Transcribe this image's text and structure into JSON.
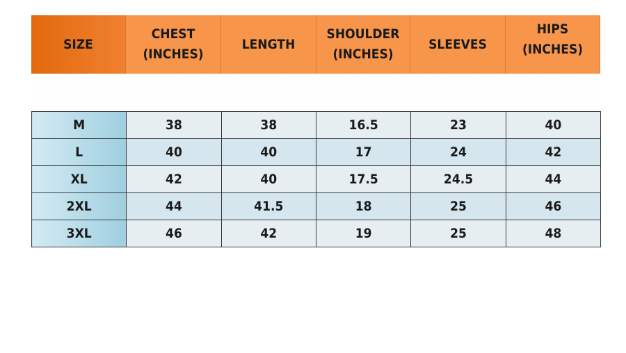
{
  "headers": [
    "SIZE",
    "CHEST\n(INCHES)",
    "LENGTH",
    "SHOULDER\n(INCHES)",
    "SLEEVES",
    "HIPS\n(INCHES)"
  ],
  "rows": [
    [
      "M",
      "38",
      "38",
      "16.5",
      "23",
      "40"
    ],
    [
      "L",
      "40",
      "40",
      "17",
      "24",
      "42"
    ],
    [
      "XL",
      "42",
      "40",
      "17.5",
      "24.5",
      "44"
    ],
    [
      "2XL",
      "44",
      "41.5",
      "18",
      "25",
      "46"
    ],
    [
      "3XL",
      "46",
      "42",
      "19",
      "25",
      "48"
    ]
  ],
  "colors": {
    "header": "#f7964a",
    "header_first": "#e36a0c",
    "size_col": "#9fcfe0",
    "cell": "#e6eef2"
  }
}
